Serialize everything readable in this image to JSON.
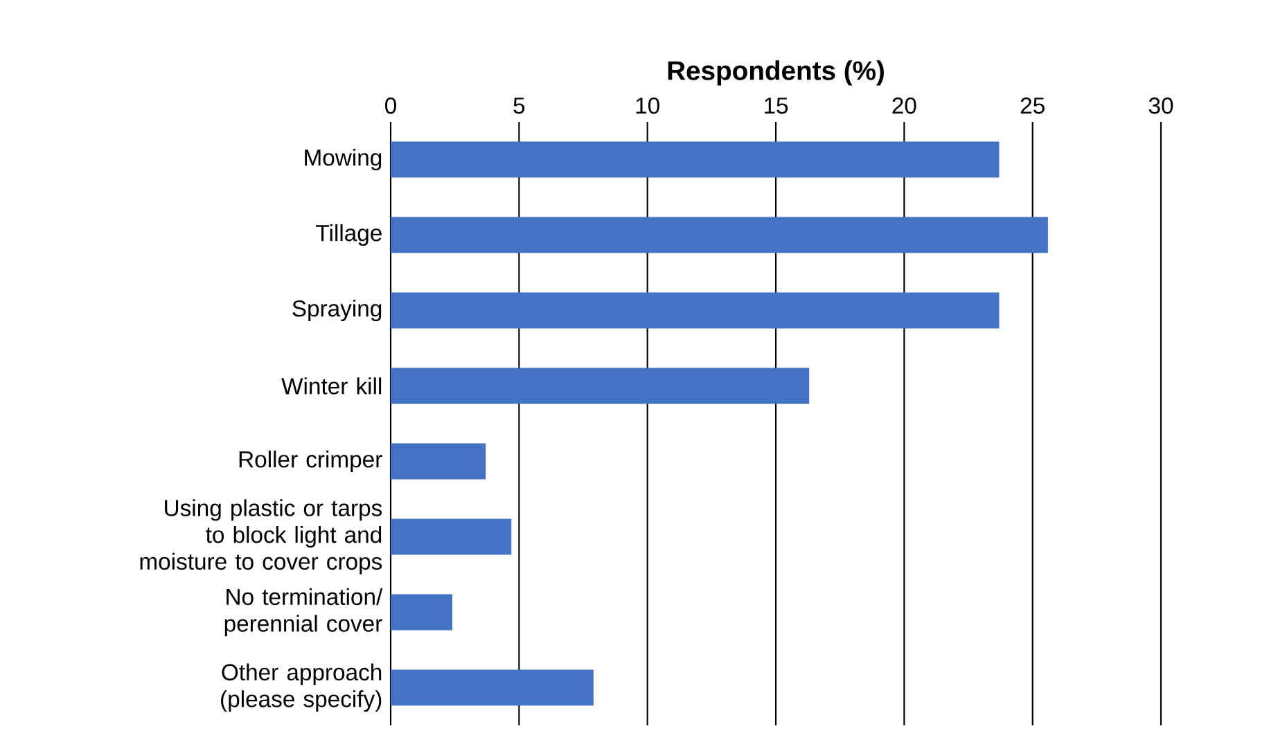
{
  "chart_data": {
    "type": "bar",
    "orientation": "horizontal",
    "xlabel": "Respondents (%)",
    "categories": [
      "Mowing",
      "Tillage",
      "Spraying",
      "Winter kill",
      "Roller crimper",
      "Using plastic or tarps to block light and moisture to cover crops",
      "No termination/ perennial cover",
      "Other approach (please specify)"
    ],
    "values": [
      23.7,
      25.6,
      23.7,
      16.3,
      3.7,
      4.7,
      2.4,
      7.9
    ],
    "color": "#4472c4",
    "xlim": [
      0,
      30
    ],
    "xticks": [
      0,
      5,
      10,
      15,
      20,
      25,
      30
    ],
    "grid": "x"
  }
}
